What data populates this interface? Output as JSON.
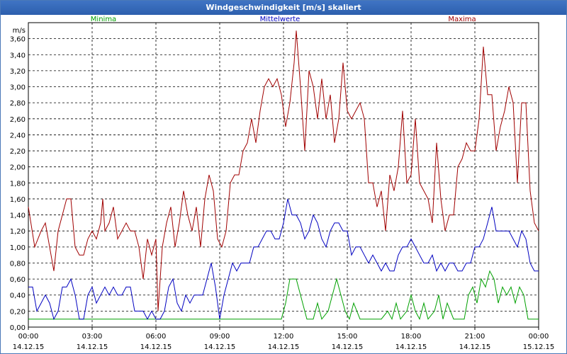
{
  "window": {
    "title": "Windgeschwindigkeit [m/s] skaliert"
  },
  "chart_data": {
    "type": "line",
    "title": "Windgeschwindigkeit [m/s] skaliert",
    "ylabel": "m/s",
    "xlabel": "",
    "ylim": [
      0,
      3.8
    ],
    "xlim": [
      0,
      24
    ],
    "grid": true,
    "legend_position": "top",
    "yticks": [
      "0,00",
      "0,20",
      "0,40",
      "0,60",
      "0,80",
      "1,00",
      "1,20",
      "1,40",
      "1,60",
      "1,80",
      "2,00",
      "2,20",
      "2,40",
      "2,60",
      "2,80",
      "3,00",
      "3,20",
      "3,40",
      "3,60"
    ],
    "xticks": [
      {
        "time": "00:00",
        "date": "14.12.15"
      },
      {
        "time": "03:00",
        "date": "14.12.15"
      },
      {
        "time": "06:00",
        "date": "14.12.15"
      },
      {
        "time": "09:00",
        "date": "14.12.15"
      },
      {
        "time": "12:00",
        "date": "14.12.15"
      },
      {
        "time": "15:00",
        "date": "14.12.15"
      },
      {
        "time": "18:00",
        "date": "14.12.15"
      },
      {
        "time": "21:00",
        "date": "14.12.15"
      },
      {
        "time": "00:00",
        "date": "15.12.15"
      }
    ],
    "series": [
      {
        "name": "Minima",
        "color": "#00a000",
        "points": [
          [
            0,
            0.1
          ],
          [
            11.9,
            0.1
          ],
          [
            12.1,
            0.3
          ],
          [
            12.3,
            0.6
          ],
          [
            12.6,
            0.6
          ],
          [
            12.9,
            0.3
          ],
          [
            13.1,
            0.1
          ],
          [
            13.4,
            0.1
          ],
          [
            13.6,
            0.3
          ],
          [
            13.8,
            0.1
          ],
          [
            14.1,
            0.2
          ],
          [
            14.3,
            0.4
          ],
          [
            14.5,
            0.6
          ],
          [
            14.7,
            0.4
          ],
          [
            14.9,
            0.2
          ],
          [
            15.1,
            0.1
          ],
          [
            15.3,
            0.3
          ],
          [
            15.6,
            0.1
          ],
          [
            16.6,
            0.1
          ],
          [
            16.9,
            0.2
          ],
          [
            17.1,
            0.1
          ],
          [
            17.3,
            0.3
          ],
          [
            17.5,
            0.1
          ],
          [
            17.8,
            0.2
          ],
          [
            18.0,
            0.4
          ],
          [
            18.2,
            0.2
          ],
          [
            18.4,
            0.1
          ],
          [
            18.6,
            0.3
          ],
          [
            18.8,
            0.1
          ],
          [
            19.1,
            0.2
          ],
          [
            19.3,
            0.4
          ],
          [
            19.5,
            0.1
          ],
          [
            19.7,
            0.3
          ],
          [
            20.0,
            0.1
          ],
          [
            20.5,
            0.1
          ],
          [
            20.7,
            0.4
          ],
          [
            20.9,
            0.5
          ],
          [
            21.1,
            0.3
          ],
          [
            21.3,
            0.6
          ],
          [
            21.5,
            0.5
          ],
          [
            21.7,
            0.7
          ],
          [
            21.9,
            0.6
          ],
          [
            22.1,
            0.3
          ],
          [
            22.3,
            0.5
          ],
          [
            22.5,
            0.4
          ],
          [
            22.7,
            0.5
          ],
          [
            22.9,
            0.3
          ],
          [
            23.1,
            0.5
          ],
          [
            23.3,
            0.4
          ],
          [
            23.5,
            0.1
          ],
          [
            24,
            0.1
          ]
        ]
      },
      {
        "name": "Mittelwerte",
        "color": "#0000c0",
        "points": [
          [
            0,
            0.5
          ],
          [
            0.2,
            0.5
          ],
          [
            0.4,
            0.2
          ],
          [
            0.6,
            0.3
          ],
          [
            0.8,
            0.4
          ],
          [
            1.0,
            0.3
          ],
          [
            1.2,
            0.1
          ],
          [
            1.4,
            0.2
          ],
          [
            1.6,
            0.5
          ],
          [
            1.8,
            0.5
          ],
          [
            2.0,
            0.6
          ],
          [
            2.2,
            0.4
          ],
          [
            2.4,
            0.1
          ],
          [
            2.6,
            0.1
          ],
          [
            2.8,
            0.4
          ],
          [
            3.0,
            0.5
          ],
          [
            3.2,
            0.3
          ],
          [
            3.4,
            0.4
          ],
          [
            3.6,
            0.5
          ],
          [
            3.8,
            0.4
          ],
          [
            4.0,
            0.5
          ],
          [
            4.2,
            0.4
          ],
          [
            4.4,
            0.4
          ],
          [
            4.6,
            0.5
          ],
          [
            4.8,
            0.5
          ],
          [
            5.0,
            0.2
          ],
          [
            5.4,
            0.2
          ],
          [
            5.6,
            0.1
          ],
          [
            5.8,
            0.2
          ],
          [
            6.0,
            0.1
          ],
          [
            6.2,
            0.1
          ],
          [
            6.4,
            0.2
          ],
          [
            6.6,
            0.5
          ],
          [
            6.8,
            0.6
          ],
          [
            7.0,
            0.3
          ],
          [
            7.2,
            0.2
          ],
          [
            7.4,
            0.4
          ],
          [
            7.6,
            0.3
          ],
          [
            7.8,
            0.4
          ],
          [
            8.0,
            0.4
          ],
          [
            8.2,
            0.4
          ],
          [
            8.4,
            0.6
          ],
          [
            8.6,
            0.8
          ],
          [
            8.8,
            0.5
          ],
          [
            9.0,
            0.1
          ],
          [
            9.2,
            0.4
          ],
          [
            9.4,
            0.6
          ],
          [
            9.6,
            0.8
          ],
          [
            9.8,
            0.7
          ],
          [
            10.0,
            0.8
          ],
          [
            10.2,
            0.8
          ],
          [
            10.4,
            0.8
          ],
          [
            10.6,
            1.0
          ],
          [
            10.8,
            1.0
          ],
          [
            11.0,
            1.1
          ],
          [
            11.2,
            1.2
          ],
          [
            11.4,
            1.2
          ],
          [
            11.6,
            1.1
          ],
          [
            11.8,
            1.1
          ],
          [
            12.0,
            1.3
          ],
          [
            12.2,
            1.6
          ],
          [
            12.4,
            1.4
          ],
          [
            12.6,
            1.4
          ],
          [
            12.8,
            1.3
          ],
          [
            13.0,
            1.1
          ],
          [
            13.2,
            1.2
          ],
          [
            13.4,
            1.4
          ],
          [
            13.6,
            1.3
          ],
          [
            13.8,
            1.1
          ],
          [
            14.0,
            1.0
          ],
          [
            14.2,
            1.2
          ],
          [
            14.4,
            1.3
          ],
          [
            14.6,
            1.3
          ],
          [
            14.8,
            1.2
          ],
          [
            15.0,
            1.2
          ],
          [
            15.2,
            0.9
          ],
          [
            15.4,
            1.0
          ],
          [
            15.6,
            1.0
          ],
          [
            15.8,
            0.9
          ],
          [
            16.0,
            0.8
          ],
          [
            16.2,
            0.9
          ],
          [
            16.4,
            0.8
          ],
          [
            16.6,
            0.7
          ],
          [
            16.8,
            0.8
          ],
          [
            17.0,
            0.7
          ],
          [
            17.2,
            0.7
          ],
          [
            17.4,
            0.9
          ],
          [
            17.6,
            1.0
          ],
          [
            17.8,
            1.0
          ],
          [
            18.0,
            1.1
          ],
          [
            18.2,
            1.0
          ],
          [
            18.4,
            0.9
          ],
          [
            18.6,
            0.8
          ],
          [
            18.8,
            0.8
          ],
          [
            19.0,
            0.9
          ],
          [
            19.2,
            0.7
          ],
          [
            19.4,
            0.8
          ],
          [
            19.6,
            0.7
          ],
          [
            19.8,
            0.8
          ],
          [
            20.0,
            0.8
          ],
          [
            20.2,
            0.7
          ],
          [
            20.4,
            0.7
          ],
          [
            20.6,
            0.8
          ],
          [
            20.8,
            0.8
          ],
          [
            21.0,
            1.0
          ],
          [
            21.2,
            1.0
          ],
          [
            21.4,
            1.1
          ],
          [
            21.6,
            1.3
          ],
          [
            21.8,
            1.5
          ],
          [
            22.0,
            1.2
          ],
          [
            22.4,
            1.2
          ],
          [
            22.6,
            1.2
          ],
          [
            22.8,
            1.1
          ],
          [
            23.0,
            1.0
          ],
          [
            23.2,
            1.2
          ],
          [
            23.4,
            1.1
          ],
          [
            23.6,
            0.8
          ],
          [
            23.8,
            0.7
          ],
          [
            24,
            0.7
          ]
        ]
      },
      {
        "name": "Maxima",
        "color": "#a00000",
        "points": [
          [
            0,
            1.5
          ],
          [
            0.3,
            1.0
          ],
          [
            0.6,
            1.2
          ],
          [
            0.8,
            1.3
          ],
          [
            1.0,
            1.0
          ],
          [
            1.2,
            0.7
          ],
          [
            1.4,
            1.2
          ],
          [
            1.6,
            1.4
          ],
          [
            1.8,
            1.6
          ],
          [
            2.0,
            1.6
          ],
          [
            2.2,
            1.0
          ],
          [
            2.4,
            0.9
          ],
          [
            2.6,
            0.9
          ],
          [
            2.8,
            1.1
          ],
          [
            3.0,
            1.2
          ],
          [
            3.2,
            1.1
          ],
          [
            3.4,
            1.3
          ],
          [
            3.5,
            1.6
          ],
          [
            3.6,
            1.2
          ],
          [
            3.8,
            1.3
          ],
          [
            4.0,
            1.5
          ],
          [
            4.2,
            1.1
          ],
          [
            4.4,
            1.2
          ],
          [
            4.6,
            1.3
          ],
          [
            4.8,
            1.2
          ],
          [
            5.0,
            1.2
          ],
          [
            5.2,
            1.0
          ],
          [
            5.4,
            0.6
          ],
          [
            5.6,
            1.1
          ],
          [
            5.8,
            0.9
          ],
          [
            6.0,
            1.1
          ],
          [
            6.1,
            0.2
          ],
          [
            6.3,
            1.0
          ],
          [
            6.5,
            1.3
          ],
          [
            6.7,
            1.5
          ],
          [
            6.9,
            1.0
          ],
          [
            7.1,
            1.3
          ],
          [
            7.3,
            1.7
          ],
          [
            7.5,
            1.4
          ],
          [
            7.7,
            1.2
          ],
          [
            7.9,
            1.5
          ],
          [
            8.1,
            1.0
          ],
          [
            8.3,
            1.6
          ],
          [
            8.5,
            1.9
          ],
          [
            8.7,
            1.7
          ],
          [
            8.9,
            1.1
          ],
          [
            9.1,
            1.0
          ],
          [
            9.3,
            1.2
          ],
          [
            9.5,
            1.8
          ],
          [
            9.7,
            1.9
          ],
          [
            9.9,
            1.9
          ],
          [
            10.1,
            2.2
          ],
          [
            10.3,
            2.3
          ],
          [
            10.5,
            2.6
          ],
          [
            10.7,
            2.3
          ],
          [
            10.9,
            2.7
          ],
          [
            11.1,
            3.0
          ],
          [
            11.3,
            3.1
          ],
          [
            11.5,
            3.0
          ],
          [
            11.7,
            3.1
          ],
          [
            11.9,
            2.9
          ],
          [
            12.1,
            2.5
          ],
          [
            12.3,
            2.8
          ],
          [
            12.5,
            3.3
          ],
          [
            12.6,
            3.7
          ],
          [
            12.8,
            3.0
          ],
          [
            13.0,
            2.2
          ],
          [
            13.2,
            3.2
          ],
          [
            13.4,
            3.0
          ],
          [
            13.6,
            2.6
          ],
          [
            13.8,
            3.1
          ],
          [
            14.0,
            2.6
          ],
          [
            14.2,
            2.9
          ],
          [
            14.4,
            2.3
          ],
          [
            14.6,
            2.6
          ],
          [
            14.8,
            3.3
          ],
          [
            15.0,
            2.7
          ],
          [
            15.2,
            2.6
          ],
          [
            15.4,
            2.7
          ],
          [
            15.6,
            2.8
          ],
          [
            15.8,
            2.6
          ],
          [
            16.0,
            1.8
          ],
          [
            16.2,
            1.8
          ],
          [
            16.4,
            1.5
          ],
          [
            16.6,
            1.7
          ],
          [
            16.8,
            1.2
          ],
          [
            17.0,
            1.9
          ],
          [
            17.2,
            1.7
          ],
          [
            17.4,
            2.0
          ],
          [
            17.6,
            2.7
          ],
          [
            17.8,
            1.8
          ],
          [
            18.0,
            1.9
          ],
          [
            18.2,
            2.6
          ],
          [
            18.4,
            1.8
          ],
          [
            18.6,
            1.7
          ],
          [
            18.8,
            1.6
          ],
          [
            19.0,
            1.3
          ],
          [
            19.2,
            2.3
          ],
          [
            19.4,
            1.6
          ],
          [
            19.6,
            1.2
          ],
          [
            19.8,
            1.4
          ],
          [
            20.0,
            1.4
          ],
          [
            20.2,
            2.0
          ],
          [
            20.4,
            2.1
          ],
          [
            20.6,
            2.3
          ],
          [
            20.8,
            2.2
          ],
          [
            21.0,
            2.2
          ],
          [
            21.2,
            2.6
          ],
          [
            21.4,
            3.5
          ],
          [
            21.6,
            2.9
          ],
          [
            21.8,
            2.9
          ],
          [
            22.0,
            2.2
          ],
          [
            22.2,
            2.5
          ],
          [
            22.4,
            2.7
          ],
          [
            22.6,
            3.0
          ],
          [
            22.8,
            2.8
          ],
          [
            23.0,
            1.8
          ],
          [
            23.2,
            2.8
          ],
          [
            23.4,
            2.8
          ],
          [
            23.6,
            1.7
          ],
          [
            23.8,
            1.3
          ],
          [
            24,
            1.2
          ]
        ]
      }
    ]
  }
}
